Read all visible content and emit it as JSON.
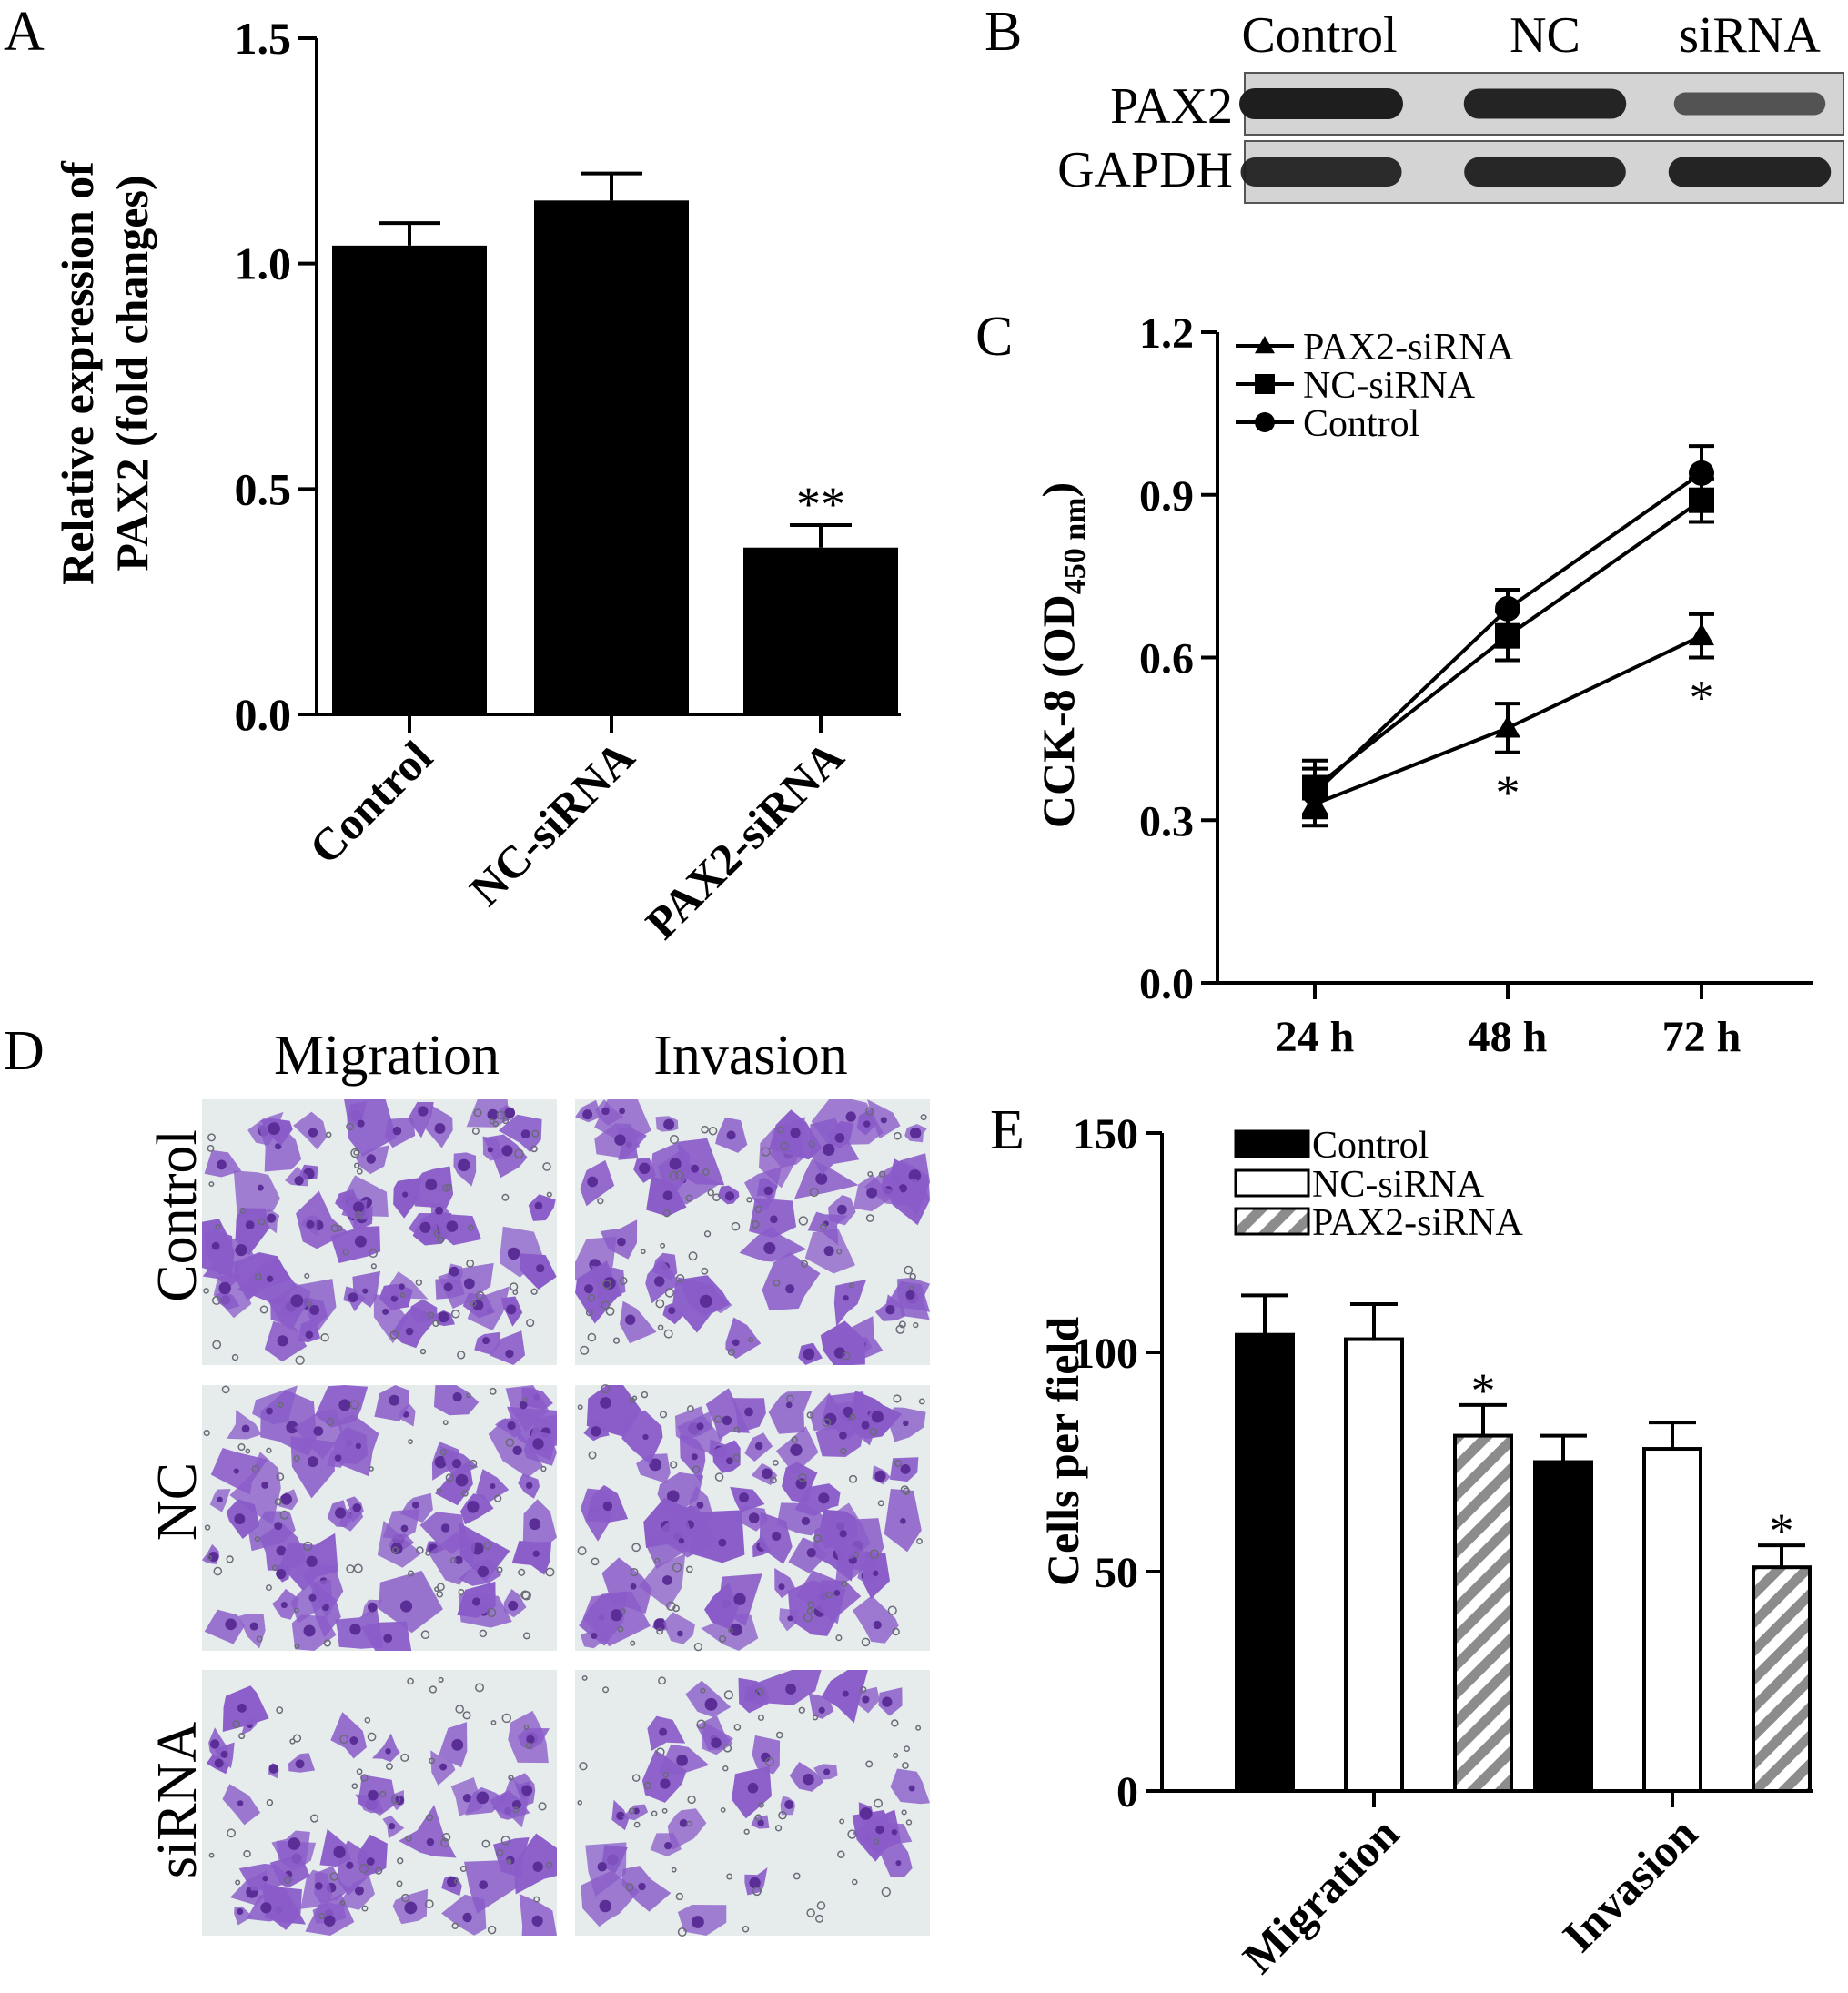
{
  "panels": {
    "a": "A",
    "b": "B",
    "c": "C",
    "d": "D",
    "e": "E"
  },
  "chart_data": [
    {
      "type": "bar",
      "panel": "A",
      "categories": [
        "Control",
        "NC-siRNA",
        "PAX2-siRNA"
      ],
      "values": [
        1.04,
        1.14,
        0.37
      ],
      "errors": [
        0.05,
        0.06,
        0.05
      ],
      "significance": [
        "",
        "",
        "**"
      ],
      "ylabel_lines": [
        "Relative expression of",
        "PAX2 (fold changes)"
      ],
      "ylim": [
        0,
        1.5
      ],
      "yticks": [
        "0.0",
        "0.5",
        "1.0",
        "1.5"
      ],
      "bar_color": "#000000"
    },
    {
      "type": "line",
      "panel": "C",
      "x": [
        "24 h",
        "48 h",
        "72 h"
      ],
      "series": [
        {
          "name": "PAX2-siRNA",
          "marker": "triangle",
          "values": [
            0.33,
            0.47,
            0.64
          ],
          "errors": [
            0.04,
            0.045,
            0.04
          ]
        },
        {
          "name": "NC-siRNA",
          "marker": "square",
          "values": [
            0.36,
            0.64,
            0.89
          ],
          "errors": [
            0.05,
            0.045,
            0.04
          ]
        },
        {
          "name": "Control",
          "marker": "circle",
          "values": [
            0.35,
            0.69,
            0.94
          ],
          "errors": [
            0.045,
            0.035,
            0.05
          ]
        }
      ],
      "significance": [
        "",
        "*",
        "*"
      ],
      "ylabel_main": "CCK-8 (OD",
      "ylabel_sub": "450 nm",
      "ylabel_close": ")",
      "ylim": [
        0,
        1.2
      ],
      "yticks": [
        "0.0",
        "0.3",
        "0.6",
        "0.9",
        "1.2"
      ],
      "legend_position": "top-left"
    },
    {
      "type": "bar",
      "panel": "E",
      "categories": [
        "Migration",
        "Invasion"
      ],
      "series": [
        {
          "name": "Control",
          "fill": "solid",
          "values": [
            104,
            75
          ],
          "errors": [
            9,
            6
          ]
        },
        {
          "name": "NC-siRNA",
          "fill": "open",
          "values": [
            103,
            78
          ],
          "errors": [
            8,
            6
          ]
        },
        {
          "name": "PAX2-siRNA",
          "fill": "hatched",
          "values": [
            81,
            51
          ],
          "errors": [
            7,
            5
          ]
        }
      ],
      "significance": [
        [
          "",
          "",
          "*"
        ],
        [
          "",
          "",
          "*"
        ]
      ],
      "ylabel": "Cells per field",
      "ylim": [
        0,
        150
      ],
      "yticks": [
        "0",
        "50",
        "100",
        "150"
      ],
      "legend_position": "top-left",
      "hatch_color": "#8c8c8c"
    }
  ],
  "blot": {
    "lanes": [
      "Control",
      "NC",
      "siRNA"
    ],
    "rows": [
      {
        "label": "PAX2",
        "intensity": [
          1.0,
          0.95,
          0.55
        ]
      },
      {
        "label": "GAPDH",
        "intensity": [
          0.9,
          0.92,
          0.95
        ]
      }
    ],
    "membrane_color": "#d4d4d4",
    "band_color": "#1e1e1e"
  },
  "micrographs": {
    "columns": [
      "Migration",
      "Invasion"
    ],
    "rows": [
      "Control",
      "NC",
      "siRNA"
    ],
    "cell_density": [
      [
        1.0,
        0.85
      ],
      [
        0.9,
        0.95
      ],
      [
        0.7,
        0.5
      ]
    ],
    "stain_color": "#8a5cc9",
    "dark_stain_color": "#5a2e96",
    "background_color": "#e6ecec"
  }
}
